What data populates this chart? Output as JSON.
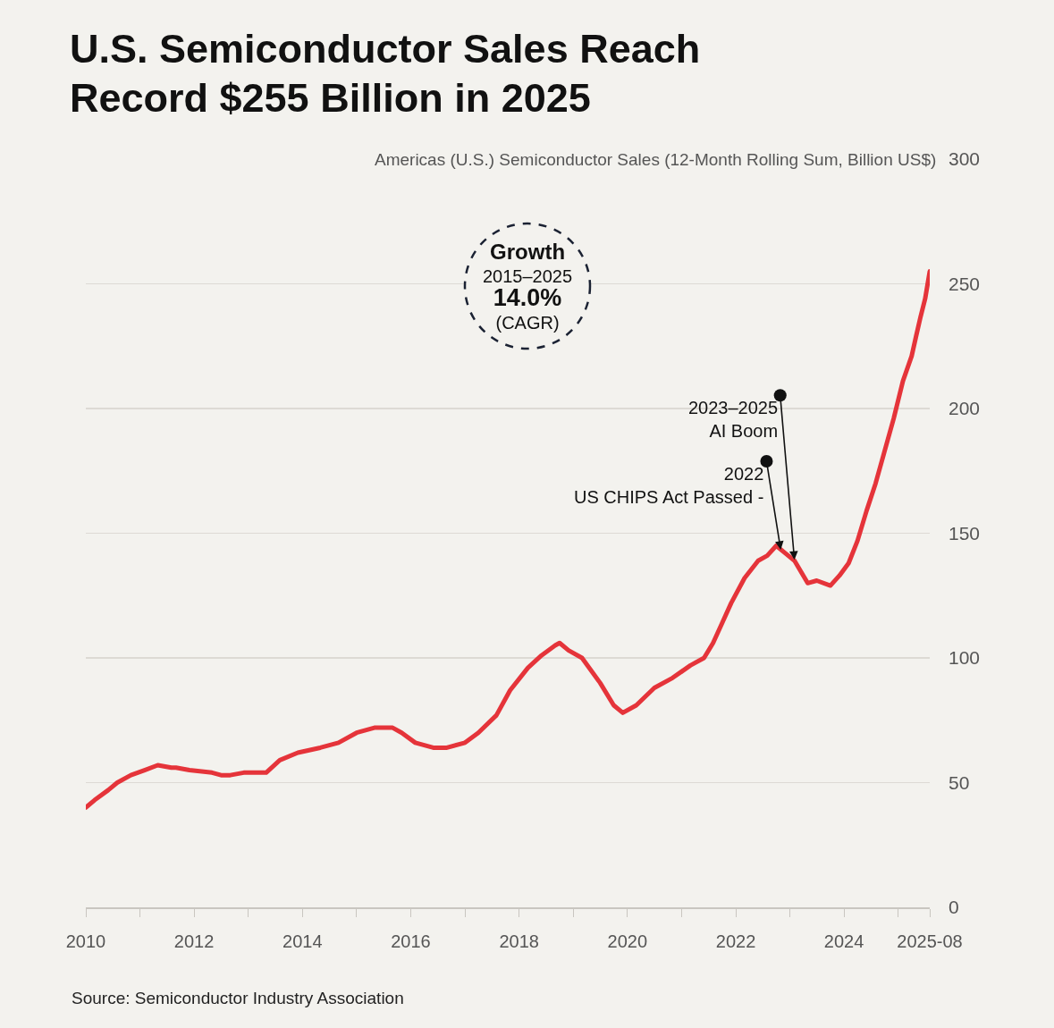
{
  "chart_data": {
    "type": "line",
    "title": "U.S. Semiconductor Sales Reach Record $255 Billion in 2025",
    "ylabel": "Americas (U.S.) Semiconductor Sales (12-Month Rolling Sum, Billion US$)",
    "x": [
      "2010-01",
      "2010-03",
      "2010-06",
      "2010-08",
      "2010-11",
      "2011-02",
      "2011-05",
      "2011-08",
      "2011-09",
      "2011-12",
      "2012-05",
      "2012-07",
      "2012-09",
      "2012-12",
      "2013-05",
      "2013-08",
      "2013-12",
      "2014-05",
      "2014-09",
      "2015-01",
      "2015-05",
      "2015-09",
      "2015-11",
      "2016-02",
      "2016-06",
      "2016-09",
      "2017-01",
      "2017-04",
      "2017-08",
      "2017-11",
      "2018-03",
      "2018-06",
      "2018-09",
      "2018-10",
      "2018-12",
      "2019-03",
      "2019-07",
      "2019-10",
      "2019-12",
      "2020-03",
      "2020-07",
      "2020-11",
      "2021-03",
      "2021-06",
      "2021-08",
      "2021-10",
      "2021-12",
      "2022-03",
      "2022-06",
      "2022-08",
      "2022-10",
      "2022-12",
      "2023-02",
      "2023-05",
      "2023-07",
      "2023-10",
      "2023-12",
      "2024-02",
      "2024-04",
      "2024-06",
      "2024-08",
      "2024-10",
      "2024-12",
      "2025-02",
      "2025-04",
      "2025-05",
      "2025-06",
      "2025-07",
      "2025-08"
    ],
    "values": [
      40,
      43,
      47,
      50,
      53,
      55,
      57,
      56,
      56,
      55,
      54,
      53,
      53,
      54,
      54,
      59,
      62,
      64,
      66,
      70,
      72,
      72,
      70,
      66,
      64,
      64,
      66,
      70,
      77,
      87,
      96,
      101,
      105,
      106,
      103,
      100,
      90,
      81,
      78,
      81,
      88,
      92,
      97,
      100,
      106,
      114,
      122,
      132,
      139,
      141,
      145,
      142,
      139,
      130,
      131,
      129,
      133,
      138,
      147,
      159,
      170,
      183,
      196,
      211,
      221,
      229,
      237,
      244,
      255
    ],
    "color": "#e5343a",
    "line_style": "solid",
    "xlim": [
      "2010-01",
      "2025-08"
    ],
    "xticks": [
      "2010",
      {
        "value": "2011",
        "label": null
      },
      "2012",
      {
        "value": "2013",
        "label": null
      },
      "2014",
      {
        "value": "2015",
        "label": null
      },
      "2016",
      {
        "value": "2017",
        "label": null
      },
      "2018",
      {
        "value": "2019",
        "label": null
      },
      "2020",
      {
        "value": "2021",
        "label": null
      },
      "2022",
      {
        "value": "2023",
        "label": null
      },
      "2024",
      {
        "value": "2025",
        "label": null
      },
      "2025-08"
    ],
    "ylim": [
      0,
      300
    ],
    "yticks": [
      0,
      50,
      100,
      150,
      200,
      250,
      300
    ],
    "grid": "y",
    "annotations": [
      "Growth\n2015–2025\n14.0%\n(CAGR)",
      {
        "text": "2023–2025\nAI Boom",
        "x": "2023-02",
        "y": 139
      },
      {
        "text": "2022\nUS CHIPS Act Passed -",
        "x": "2022-11",
        "y": 143
      },
      "Source: Semiconductor Industry Association"
    ]
  }
}
